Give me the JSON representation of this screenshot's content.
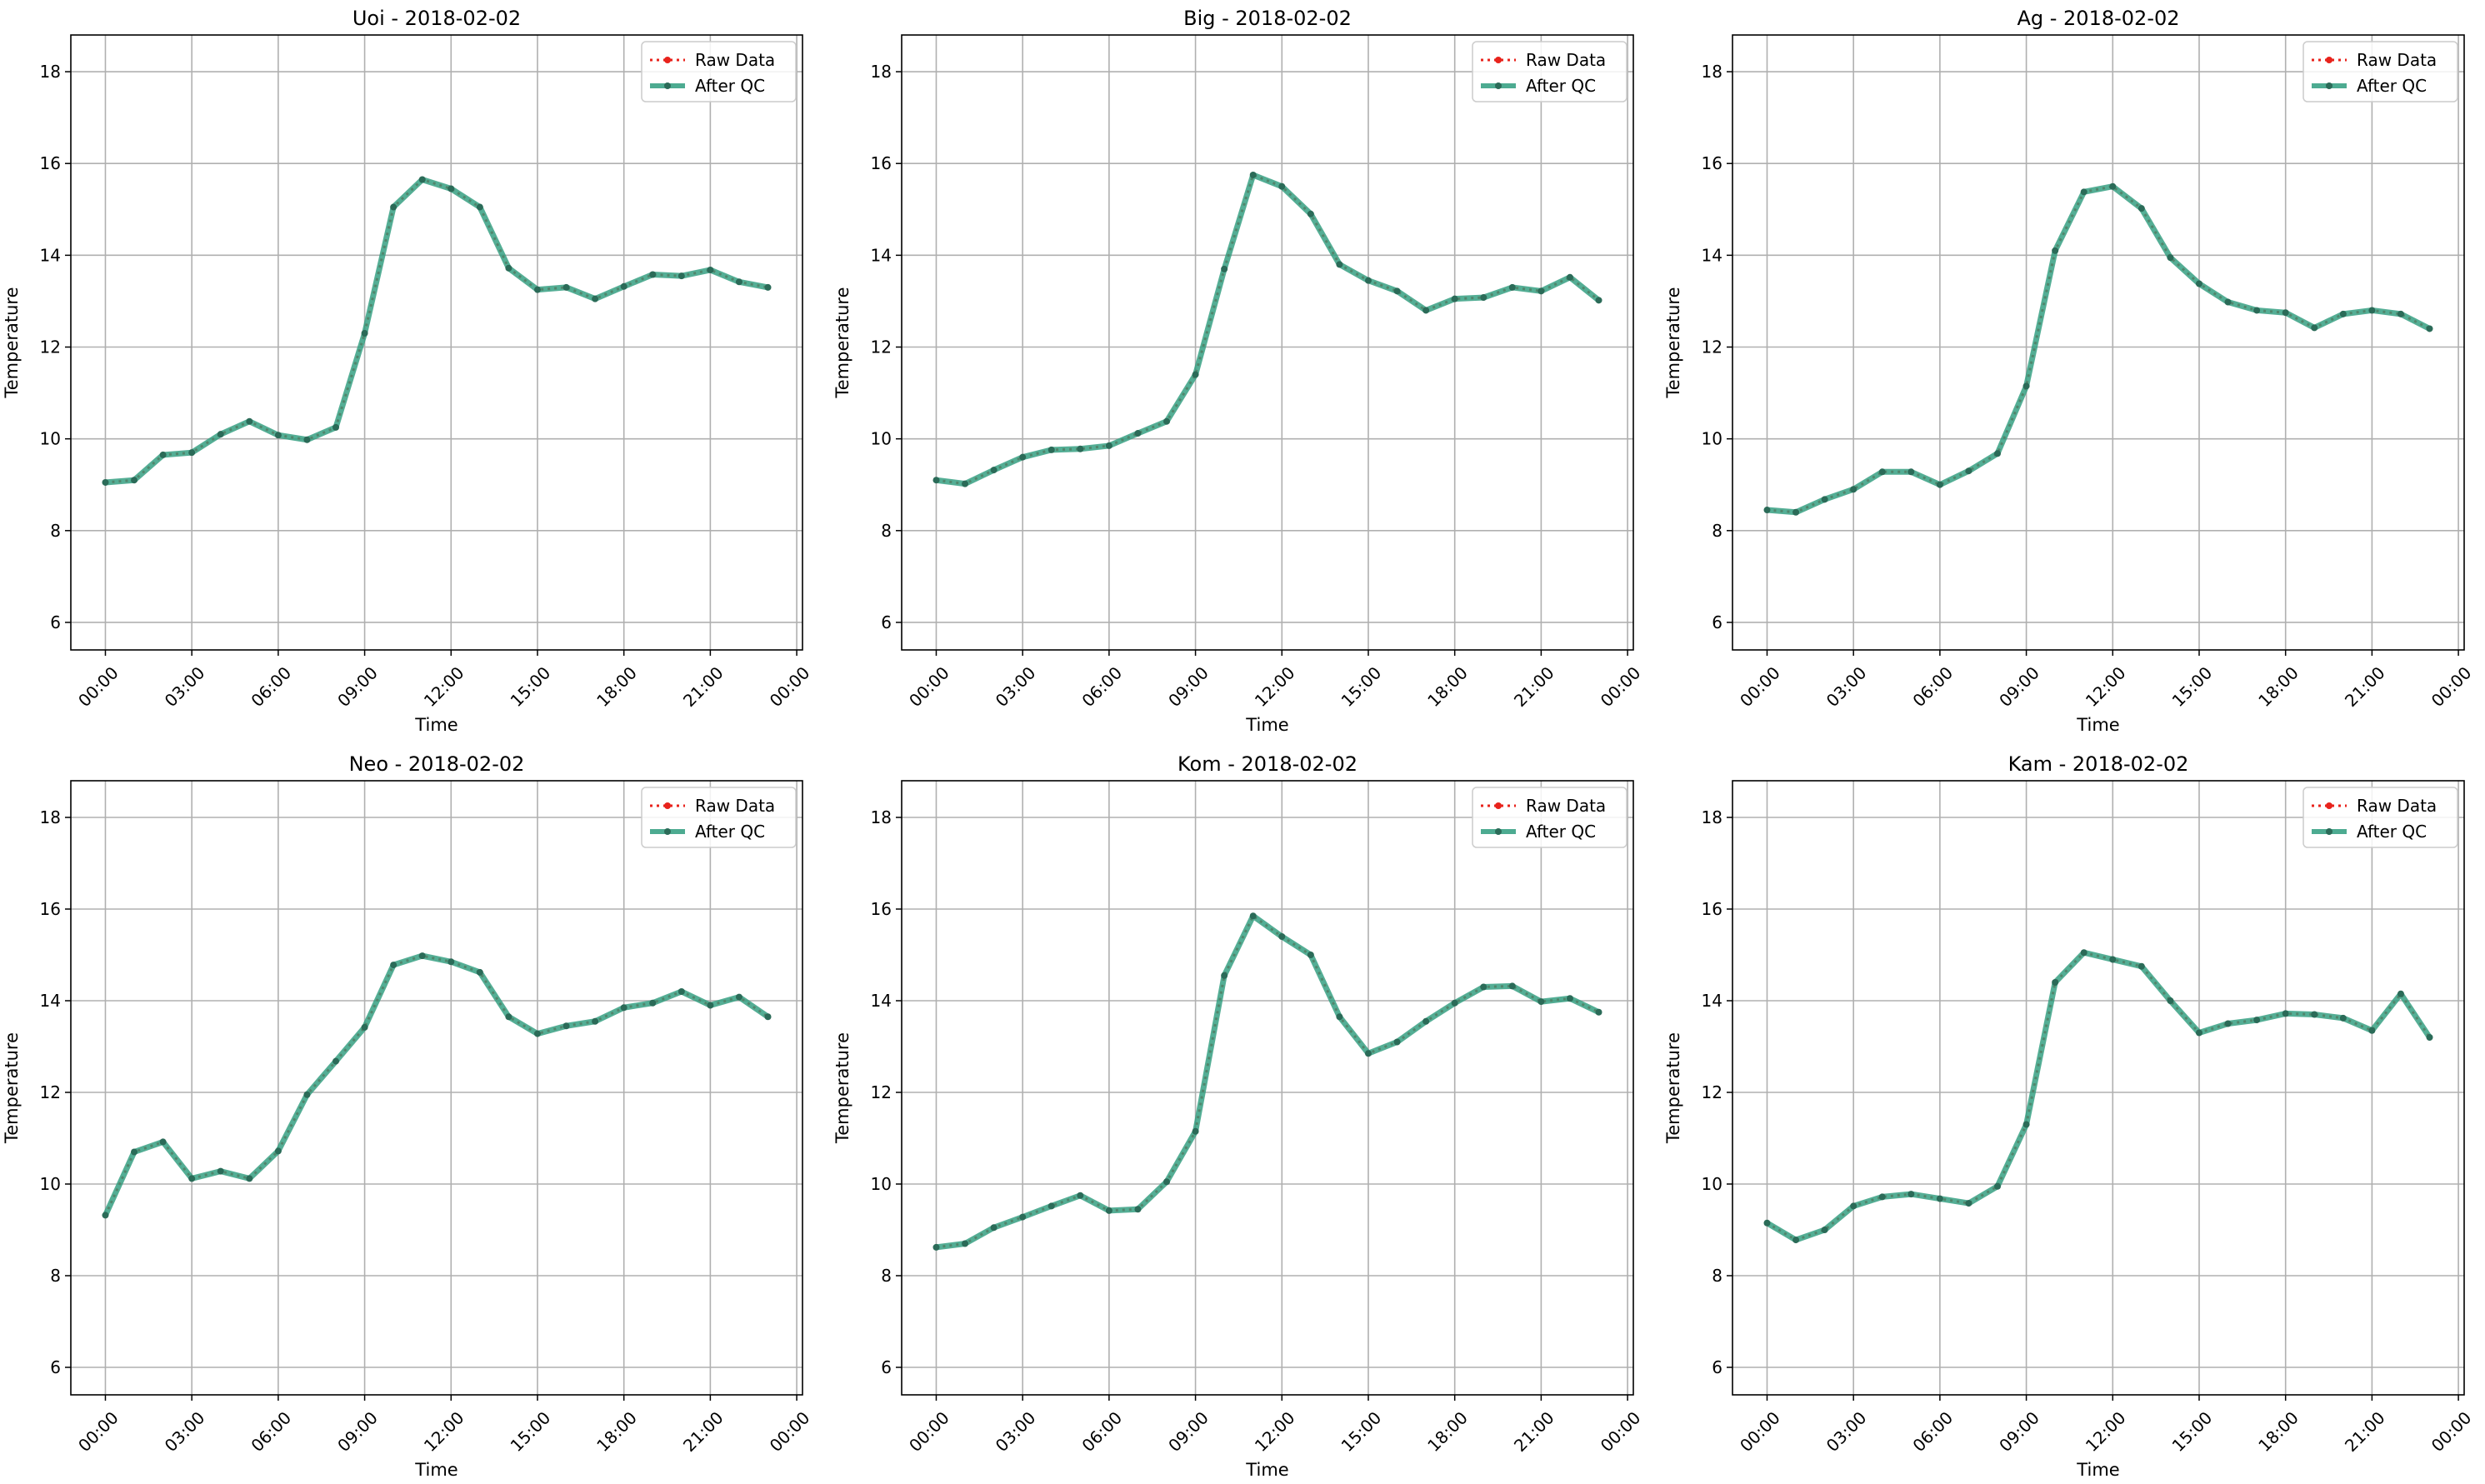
{
  "figure": {
    "colors": {
      "raw": "#e8231c",
      "qc": "#2e9c7e",
      "grid": "#b0b0b0",
      "axis": "#000000"
    },
    "legend": {
      "raw_label": "Raw Data",
      "qc_label": "After QC",
      "placement": "upper right"
    }
  },
  "chart_data": [
    {
      "type": "line",
      "title": "Uoi - 2018-02-02",
      "xlabel": "Time",
      "ylabel": "Temperature",
      "x_ticks": [
        "00:00",
        "03:00",
        "06:00",
        "09:00",
        "12:00",
        "15:00",
        "18:00",
        "21:00",
        "00:00"
      ],
      "y_ticks": [
        6,
        8,
        10,
        12,
        14,
        16,
        18
      ],
      "ylim": [
        5.4,
        18.8
      ],
      "xlim_hours": [
        -1.2,
        24.2
      ],
      "grid": true,
      "x_hours": [
        0,
        1,
        2,
        3,
        4,
        5,
        6,
        7,
        8,
        9,
        10,
        11,
        12,
        13,
        14,
        15,
        16,
        17,
        18,
        19,
        20,
        21,
        22,
        23
      ],
      "series": [
        {
          "name": "Raw Data",
          "values": [
            9.05,
            9.1,
            9.65,
            9.7,
            10.1,
            10.38,
            10.08,
            9.98,
            10.25,
            12.3,
            15.05,
            15.65,
            15.45,
            15.05,
            13.72,
            13.25,
            13.3,
            13.05,
            13.32,
            13.58,
            13.55,
            13.68,
            13.42,
            13.3
          ]
        },
        {
          "name": "After QC",
          "values": [
            9.05,
            9.1,
            9.65,
            9.7,
            10.1,
            10.38,
            10.08,
            9.98,
            10.25,
            12.3,
            15.05,
            15.65,
            15.45,
            15.05,
            13.72,
            13.25,
            13.3,
            13.05,
            13.32,
            13.58,
            13.55,
            13.68,
            13.42,
            13.3
          ]
        }
      ]
    },
    {
      "type": "line",
      "title": "Big - 2018-02-02",
      "xlabel": "Time",
      "ylabel": "Temperature",
      "x_ticks": [
        "00:00",
        "03:00",
        "06:00",
        "09:00",
        "12:00",
        "15:00",
        "18:00",
        "21:00",
        "00:00"
      ],
      "y_ticks": [
        6,
        8,
        10,
        12,
        14,
        16,
        18
      ],
      "ylim": [
        5.4,
        18.8
      ],
      "xlim_hours": [
        -1.2,
        24.2
      ],
      "grid": true,
      "x_hours": [
        0,
        1,
        2,
        3,
        4,
        5,
        6,
        7,
        8,
        9,
        10,
        11,
        12,
        13,
        14,
        15,
        16,
        17,
        18,
        19,
        20,
        21,
        22,
        23
      ],
      "series": [
        {
          "name": "Raw Data",
          "values": [
            9.1,
            9.02,
            9.32,
            9.6,
            9.76,
            9.78,
            9.85,
            10.12,
            10.38,
            11.4,
            13.7,
            15.75,
            15.5,
            14.9,
            13.8,
            13.45,
            13.22,
            12.8,
            13.05,
            13.08,
            13.3,
            13.22,
            13.52,
            13.02
          ]
        },
        {
          "name": "After QC",
          "values": [
            9.1,
            9.02,
            9.32,
            9.6,
            9.76,
            9.78,
            9.85,
            10.12,
            10.38,
            11.4,
            13.7,
            15.75,
            15.5,
            14.9,
            13.8,
            13.45,
            13.22,
            12.8,
            13.05,
            13.08,
            13.3,
            13.22,
            13.52,
            13.02
          ]
        }
      ]
    },
    {
      "type": "line",
      "title": "Ag - 2018-02-02",
      "xlabel": "Time",
      "ylabel": "Temperature",
      "x_ticks": [
        "00:00",
        "03:00",
        "06:00",
        "09:00",
        "12:00",
        "15:00",
        "18:00",
        "21:00",
        "00:00"
      ],
      "y_ticks": [
        6,
        8,
        10,
        12,
        14,
        16,
        18
      ],
      "ylim": [
        5.4,
        18.8
      ],
      "xlim_hours": [
        -1.2,
        24.2
      ],
      "grid": true,
      "x_hours": [
        0,
        1,
        2,
        3,
        4,
        5,
        6,
        7,
        8,
        9,
        10,
        11,
        12,
        13,
        14,
        15,
        16,
        17,
        18,
        19,
        20,
        21,
        22,
        23
      ],
      "series": [
        {
          "name": "Raw Data",
          "values": [
            8.45,
            8.4,
            8.68,
            8.9,
            9.28,
            9.28,
            9.0,
            9.3,
            9.68,
            11.15,
            14.1,
            15.38,
            15.5,
            15.02,
            13.95,
            13.38,
            12.98,
            12.8,
            12.75,
            12.42,
            12.72,
            12.8,
            12.72,
            12.4
          ]
        },
        {
          "name": "After QC",
          "values": [
            8.45,
            8.4,
            8.68,
            8.9,
            9.28,
            9.28,
            9.0,
            9.3,
            9.68,
            11.15,
            14.1,
            15.38,
            15.5,
            15.02,
            13.95,
            13.38,
            12.98,
            12.8,
            12.75,
            12.42,
            12.72,
            12.8,
            12.72,
            12.4
          ]
        }
      ]
    },
    {
      "type": "line",
      "title": "Neo - 2018-02-02",
      "xlabel": "Time",
      "ylabel": "Temperature",
      "x_ticks": [
        "00:00",
        "03:00",
        "06:00",
        "09:00",
        "12:00",
        "15:00",
        "18:00",
        "21:00",
        "00:00"
      ],
      "y_ticks": [
        6,
        8,
        10,
        12,
        14,
        16,
        18
      ],
      "ylim": [
        5.4,
        18.8
      ],
      "xlim_hours": [
        -1.2,
        24.2
      ],
      "grid": true,
      "x_hours": [
        0,
        1,
        2,
        3,
        4,
        5,
        6,
        7,
        8,
        9,
        10,
        11,
        12,
        13,
        14,
        15,
        16,
        17,
        18,
        19,
        20,
        21,
        22,
        23
      ],
      "series": [
        {
          "name": "Raw Data",
          "values": [
            9.32,
            10.7,
            10.92,
            10.12,
            10.28,
            10.12,
            10.72,
            11.95,
            12.68,
            13.42,
            14.78,
            14.98,
            14.85,
            14.62,
            13.65,
            13.28,
            13.45,
            13.55,
            13.85,
            13.95,
            14.2,
            13.9,
            14.08,
            13.65
          ]
        },
        {
          "name": "After QC",
          "values": [
            9.32,
            10.7,
            10.92,
            10.12,
            10.28,
            10.12,
            10.72,
            11.95,
            12.68,
            13.42,
            14.78,
            14.98,
            14.85,
            14.62,
            13.65,
            13.28,
            13.45,
            13.55,
            13.85,
            13.95,
            14.2,
            13.9,
            14.08,
            13.65
          ]
        }
      ]
    },
    {
      "type": "line",
      "title": "Kom - 2018-02-02",
      "xlabel": "Time",
      "ylabel": "Temperature",
      "x_ticks": [
        "00:00",
        "03:00",
        "06:00",
        "09:00",
        "12:00",
        "15:00",
        "18:00",
        "21:00",
        "00:00"
      ],
      "y_ticks": [
        6,
        8,
        10,
        12,
        14,
        16,
        18
      ],
      "ylim": [
        5.4,
        18.8
      ],
      "xlim_hours": [
        -1.2,
        24.2
      ],
      "grid": true,
      "x_hours": [
        0,
        1,
        2,
        3,
        4,
        5,
        6,
        7,
        8,
        9,
        10,
        11,
        12,
        13,
        14,
        15,
        16,
        17,
        18,
        19,
        20,
        21,
        22,
        23
      ],
      "series": [
        {
          "name": "Raw Data",
          "values": [
            8.62,
            8.7,
            9.05,
            9.28,
            9.52,
            9.75,
            9.42,
            9.45,
            10.05,
            11.15,
            14.55,
            15.85,
            15.4,
            15.0,
            13.65,
            12.85,
            13.1,
            13.55,
            13.95,
            14.3,
            14.32,
            13.98,
            14.05,
            13.75
          ]
        },
        {
          "name": "After QC",
          "values": [
            8.62,
            8.7,
            9.05,
            9.28,
            9.52,
            9.75,
            9.42,
            9.45,
            10.05,
            11.15,
            14.55,
            15.85,
            15.4,
            15.0,
            13.65,
            12.85,
            13.1,
            13.55,
            13.95,
            14.3,
            14.32,
            13.98,
            14.05,
            13.75
          ]
        }
      ]
    },
    {
      "type": "line",
      "title": "Kam - 2018-02-02",
      "xlabel": "Time",
      "ylabel": "Temperature",
      "x_ticks": [
        "00:00",
        "03:00",
        "06:00",
        "09:00",
        "12:00",
        "15:00",
        "18:00",
        "21:00",
        "00:00"
      ],
      "y_ticks": [
        6,
        8,
        10,
        12,
        14,
        16,
        18
      ],
      "ylim": [
        5.4,
        18.8
      ],
      "xlim_hours": [
        -1.2,
        24.2
      ],
      "grid": true,
      "x_hours": [
        0,
        1,
        2,
        3,
        4,
        5,
        6,
        7,
        8,
        9,
        10,
        11,
        12,
        13,
        14,
        15,
        16,
        17,
        18,
        19,
        20,
        21,
        22,
        23
      ],
      "series": [
        {
          "name": "Raw Data",
          "values": [
            9.15,
            8.78,
            9.0,
            9.52,
            9.72,
            9.78,
            9.68,
            9.58,
            9.95,
            11.3,
            14.4,
            15.05,
            14.9,
            14.75,
            14.0,
            13.3,
            13.5,
            13.58,
            13.72,
            13.7,
            13.62,
            13.35,
            14.15,
            13.2
          ]
        },
        {
          "name": "After QC",
          "values": [
            9.15,
            8.78,
            9.0,
            9.52,
            9.72,
            9.78,
            9.68,
            9.58,
            9.95,
            11.3,
            14.4,
            15.05,
            14.9,
            14.75,
            14.0,
            13.3,
            13.5,
            13.58,
            13.72,
            13.7,
            13.62,
            13.35,
            14.15,
            13.2
          ]
        }
      ]
    }
  ]
}
